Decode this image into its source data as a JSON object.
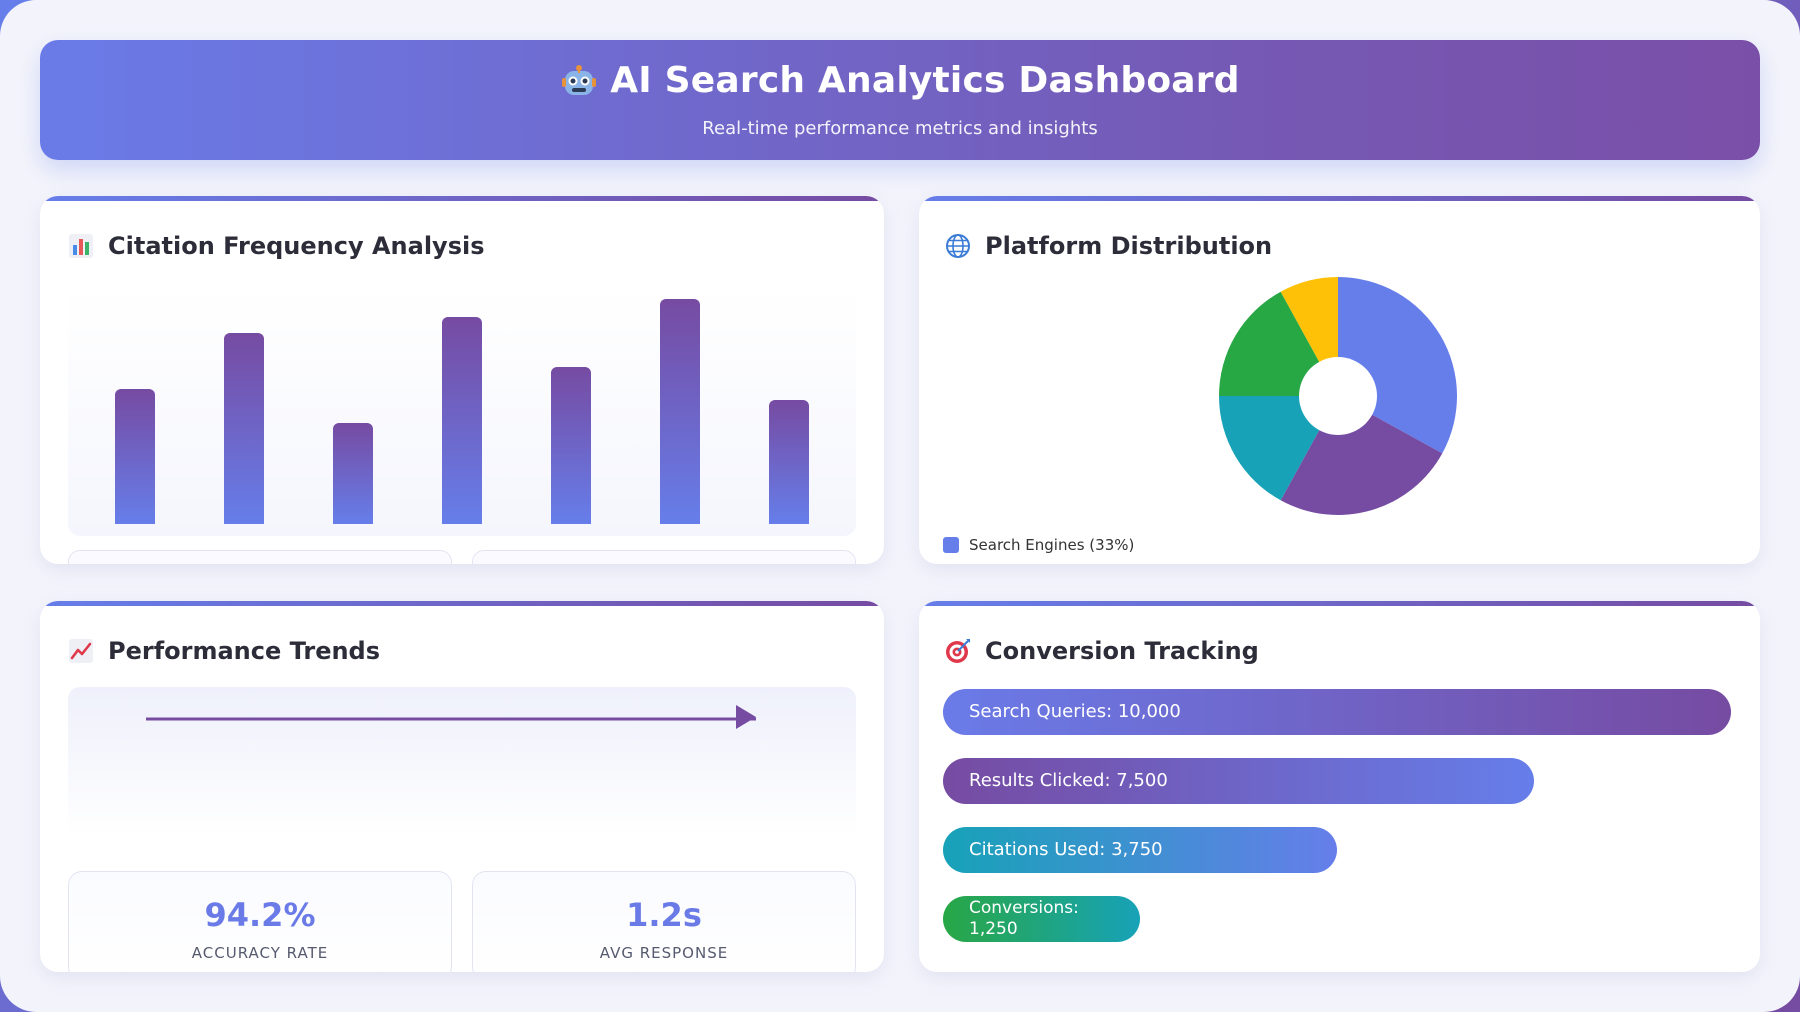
{
  "header": {
    "title": "AI Search Analytics Dashboard",
    "subtitle": "Real-time performance metrics and insights",
    "icon": "robot-icon"
  },
  "citation": {
    "title": "Citation Frequency Analysis",
    "icon": "bar-chart-icon"
  },
  "platform": {
    "title": "Platform Distribution",
    "icon": "globe-icon",
    "legend": [
      "Search Engines (33%)"
    ]
  },
  "trends": {
    "title": "Performance Trends",
    "icon": "trend-up-icon",
    "stats": [
      {
        "value": "94.2%",
        "label": "ACCURACY RATE"
      },
      {
        "value": "1.2s",
        "label": "AVG RESPONSE"
      }
    ]
  },
  "conversion": {
    "title": "Conversion Tracking",
    "icon": "target-icon",
    "steps": [
      {
        "label": "Search Queries: 10,000",
        "value": 10000
      },
      {
        "label": "Results Clicked: 7,500",
        "value": 7500
      },
      {
        "label": "Citations Used: 3,750",
        "value": 3750
      },
      {
        "label": "Conversions: 1,250",
        "value": 1250
      }
    ]
  },
  "chart_data": [
    {
      "type": "bar",
      "categories": [
        "",
        "",
        "",
        "",
        "",
        "",
        ""
      ],
      "values": [
        60,
        85,
        45,
        92,
        70,
        100,
        55
      ],
      "ylim": [
        0,
        100
      ],
      "colors": {
        "top": "#764ba2",
        "bottom": "#667eea"
      }
    },
    {
      "type": "pie",
      "slices": [
        {
          "label": "Search Engines",
          "value": 33,
          "color": "#667eea"
        },
        {
          "label": "",
          "value": 25,
          "color": "#764ba2"
        },
        {
          "label": "",
          "value": 17,
          "color": "#17a2b8"
        },
        {
          "label": "",
          "value": 17,
          "color": "#28a745"
        },
        {
          "label": "",
          "value": 8,
          "color": "#ffc107"
        }
      ],
      "legend": "bottom-left"
    },
    {
      "type": "line",
      "x": [
        0,
        1
      ],
      "values": [
        1,
        1
      ],
      "color": "#764ba2"
    }
  ]
}
